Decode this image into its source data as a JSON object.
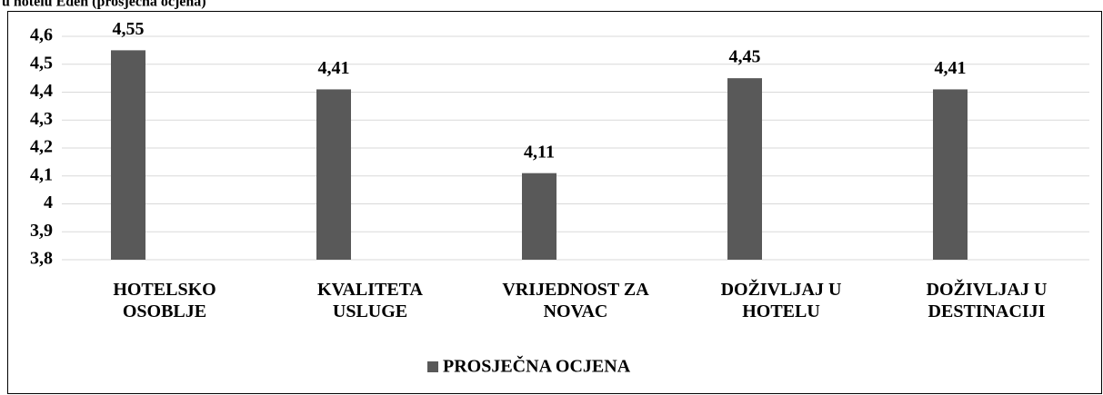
{
  "chart_data": {
    "type": "bar",
    "title": "u hotelu Eden (prosječna ocjena)",
    "categories": [
      "HOTELSKO\nOSOBLJE",
      "KVALITETA\nUSLUGE",
      "VRIJEDNOST ZA\nNOVAC",
      "DOŽIVLJAJ U\nHOTELU",
      "DOŽIVLJAJ U\nDESTINACIJI"
    ],
    "series": [
      {
        "name": "PROSJEČNA OCJENA",
        "color": "#595959",
        "values": [
          4.55,
          4.41,
          4.11,
          4.45,
          4.41
        ],
        "value_labels": [
          "4,55",
          "4,41",
          "4,11",
          "4,45",
          "4,41"
        ]
      }
    ],
    "ylim": [
      3.8,
      4.6
    ],
    "yticks": [
      {
        "value": 3.8,
        "label": "3,8"
      },
      {
        "value": 3.9,
        "label": "3,9"
      },
      4,
      {
        "value": 4.1,
        "label": "4,1"
      },
      {
        "value": 4.2,
        "label": "4,2"
      },
      {
        "value": 4.3,
        "label": "4,3"
      },
      {
        "value": 4.4,
        "label": "4,4"
      },
      {
        "value": 4.5,
        "label": "4,5"
      },
      {
        "value": 4.6,
        "label": "4,6"
      }
    ],
    "grid": true,
    "legend": "bottom"
  }
}
